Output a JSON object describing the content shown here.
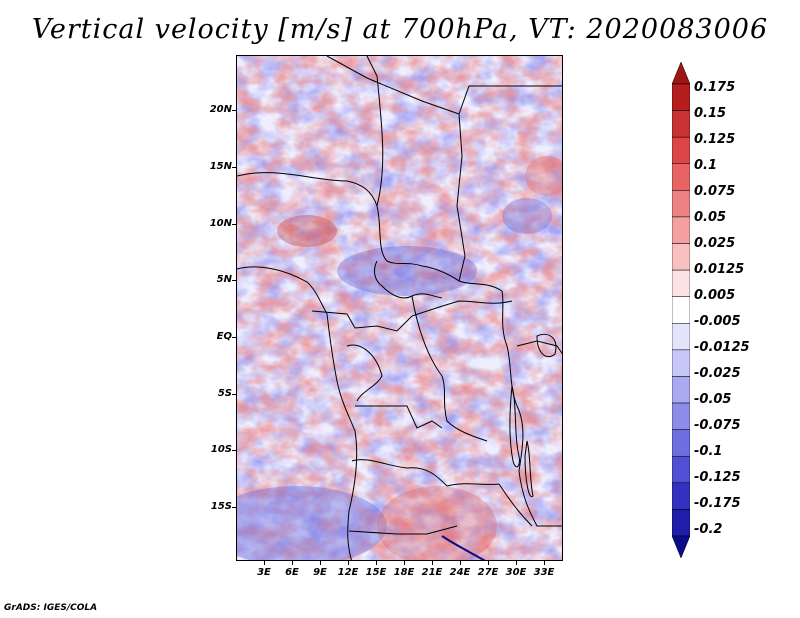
{
  "title": "Vertical velocity [m/s] at 700hPa, VT: 2020083006",
  "footer": "GrADS: IGES/COLA",
  "map": {
    "region": "Central Africa",
    "lon_range": [
      0,
      35
    ],
    "lat_range": [
      -20,
      25
    ],
    "lat_ticks": [
      "20N",
      "15N",
      "10N",
      "5N",
      "EQ",
      "5S",
      "10S",
      "15S"
    ],
    "lon_ticks": [
      "3E",
      "6E",
      "9E",
      "12E",
      "15E",
      "18E",
      "21E",
      "24E",
      "27E",
      "30E",
      "33E"
    ]
  },
  "legend": {
    "labels": [
      "0.175",
      "0.15",
      "0.125",
      "0.1",
      "0.075",
      "0.05",
      "0.025",
      "0.0125",
      "0.005",
      "-0.005",
      "-0.0125",
      "-0.025",
      "-0.05",
      "-0.075",
      "-0.1",
      "-0.125",
      "-0.175",
      "-0.2"
    ],
    "colors": [
      "#a01414",
      "#b41e1e",
      "#c83232",
      "#dc4646",
      "#e66464",
      "#ee8282",
      "#f4a0a0",
      "#f8c0c0",
      "#fce2e2",
      "#ffffff",
      "#e4e4fc",
      "#c8c8f8",
      "#aaaaf2",
      "#8c8cea",
      "#6e6ee0",
      "#5050d2",
      "#3232be",
      "#1e1eaa",
      "#0a0a8c"
    ]
  }
}
